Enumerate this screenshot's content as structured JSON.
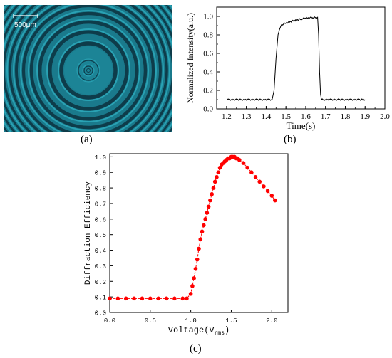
{
  "figure": {
    "panel_a": {
      "label": "(a)",
      "scale_bar_text": "500μm",
      "colors": {
        "fringe_light": "#2aa2b4",
        "fringe_dark": "#0e3c4a",
        "background": "#1a7a8c",
        "scale_bar": "#ffffff"
      }
    },
    "panel_b": {
      "label": "(b)"
    },
    "panel_c": {
      "label": "(c)"
    }
  },
  "chart_data": [
    {
      "id": "b",
      "type": "line",
      "xlabel": "Time(s)",
      "ylabel": "Normalized Intensity(a.u.)",
      "xlim": [
        1.15,
        2.0
      ],
      "ylim": [
        0.0,
        1.1
      ],
      "xticks": [
        1.2,
        1.3,
        1.4,
        1.5,
        1.6,
        1.7,
        1.8,
        1.9,
        2.0
      ],
      "yticks": [
        0.0,
        0.2,
        0.4,
        0.6,
        0.8,
        1.0
      ],
      "grid": false,
      "color": "#000000",
      "x": [
        1.2,
        1.43,
        1.44,
        1.45,
        1.46,
        1.47,
        1.48,
        1.5,
        1.55,
        1.6,
        1.66,
        1.665,
        1.67,
        1.675,
        1.68,
        1.9
      ],
      "y": [
        0.1,
        0.1,
        0.2,
        0.55,
        0.8,
        0.88,
        0.91,
        0.93,
        0.96,
        0.98,
        0.99,
        0.8,
        0.4,
        0.15,
        0.1,
        0.1
      ]
    },
    {
      "id": "c",
      "type": "line",
      "xlabel": "Voltage(V",
      "xlabel_sub": "rms",
      "xlabel_close": ")",
      "ylabel": "Diffraction Efficiency",
      "xlim": [
        0.0,
        2.2
      ],
      "ylim": [
        0.0,
        1.02
      ],
      "xticks": [
        0.0,
        0.5,
        1.0,
        1.5,
        2.0
      ],
      "yticks": [
        0.0,
        0.1,
        0.2,
        0.3,
        0.4,
        0.5,
        0.6,
        0.7,
        0.8,
        0.9,
        1.0
      ],
      "grid": false,
      "marker": "circle",
      "color": "#ff0000",
      "x": [
        0.0,
        0.1,
        0.2,
        0.3,
        0.4,
        0.5,
        0.6,
        0.7,
        0.8,
        0.9,
        0.95,
        1.0,
        1.02,
        1.04,
        1.06,
        1.08,
        1.1,
        1.12,
        1.14,
        1.16,
        1.18,
        1.2,
        1.22,
        1.24,
        1.26,
        1.28,
        1.3,
        1.32,
        1.34,
        1.36,
        1.38,
        1.4,
        1.42,
        1.44,
        1.46,
        1.48,
        1.5,
        1.52,
        1.54,
        1.56,
        1.58,
        1.6,
        1.65,
        1.7,
        1.75,
        1.8,
        1.85,
        1.9,
        1.95,
        2.0,
        2.04
      ],
      "y": [
        0.09,
        0.09,
        0.09,
        0.09,
        0.09,
        0.09,
        0.09,
        0.09,
        0.09,
        0.09,
        0.09,
        0.12,
        0.17,
        0.22,
        0.28,
        0.34,
        0.41,
        0.47,
        0.52,
        0.56,
        0.6,
        0.64,
        0.68,
        0.72,
        0.76,
        0.8,
        0.84,
        0.87,
        0.9,
        0.93,
        0.95,
        0.96,
        0.97,
        0.98,
        0.99,
        0.99,
        1.0,
        1.0,
        1.0,
        0.99,
        0.99,
        0.98,
        0.96,
        0.93,
        0.9,
        0.87,
        0.84,
        0.81,
        0.78,
        0.75,
        0.72
      ]
    }
  ]
}
